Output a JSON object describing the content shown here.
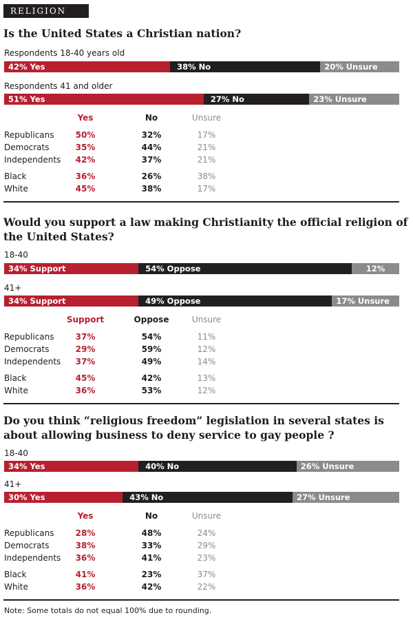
{
  "section_label": "RELIGION",
  "colors": {
    "yes": "#b8202f",
    "no": "#231f20",
    "unsure": "#8a8b8d"
  },
  "questions": [
    {
      "title": "Is the United States a Christian nation?",
      "groups": [
        {
          "label": "Respondents 18-40 years old",
          "segments": [
            "42% Yes",
            "38% No",
            "20% Unsure"
          ]
        },
        {
          "label": "Respondents 41 and older",
          "segments": [
            "51% Yes",
            "27% No",
            "23% Unsure"
          ]
        }
      ],
      "table": {
        "headers": [
          "Yes",
          "No",
          "Unsure"
        ],
        "rows": [
          {
            "label": "Republicans",
            "values": [
              "50%",
              "32%",
              "17%"
            ]
          },
          {
            "label": "Democrats",
            "values": [
              "35%",
              "44%",
              "21%"
            ]
          },
          {
            "label": "Independents",
            "values": [
              "42%",
              "37%",
              "21%"
            ]
          },
          {
            "label": "Black",
            "values": [
              "36%",
              "26%",
              "38%"
            ]
          },
          {
            "label": "White",
            "values": [
              "45%",
              "38%",
              "17%"
            ]
          }
        ]
      }
    },
    {
      "title": "Would you support a law making Christianity the official religion of the United States?",
      "groups": [
        {
          "label": "18-40",
          "segments": [
            "34% Support",
            "54% Oppose",
            "12%"
          ]
        },
        {
          "label": "41+",
          "segments": [
            "34% Support",
            "49% Oppose",
            "17% Unsure"
          ]
        }
      ],
      "table": {
        "headers": [
          "Support",
          "Oppose",
          "Unsure"
        ],
        "rows": [
          {
            "label": "Republicans",
            "values": [
              "37%",
              "54%",
              "11%"
            ]
          },
          {
            "label": "Democrats",
            "values": [
              "29%",
              "59%",
              "12%"
            ]
          },
          {
            "label": "Independents",
            "values": [
              "37%",
              "49%",
              "14%"
            ]
          },
          {
            "label": "Black",
            "values": [
              "45%",
              "42%",
              "13%"
            ]
          },
          {
            "label": "White",
            "values": [
              "36%",
              "53%",
              "12%"
            ]
          }
        ]
      }
    },
    {
      "title": "Do you think “religious freedom” legislation in several states is about allowing business to deny service to gay people ?",
      "groups": [
        {
          "label": "18-40",
          "segments": [
            "34% Yes",
            "40% No",
            "26% Unsure"
          ]
        },
        {
          "label": "41+",
          "segments": [
            "30% Yes",
            "43% No",
            "27% Unsure"
          ]
        }
      ],
      "table": {
        "headers": [
          "Yes",
          "No",
          "Unsure"
        ],
        "rows": [
          {
            "label": "Republicans",
            "values": [
              "28%",
              "48%",
              "24%"
            ]
          },
          {
            "label": "Democrats",
            "values": [
              "38%",
              "33%",
              "29%"
            ]
          },
          {
            "label": "Independents",
            "values": [
              "36%",
              "41%",
              "23%"
            ]
          },
          {
            "label": "Black",
            "values": [
              "41%",
              "23%",
              "37%"
            ]
          },
          {
            "label": "White",
            "values": [
              "36%",
              "42%",
              "22%"
            ]
          }
        ]
      }
    }
  ],
  "note": "Note: Some totals do not equal 100% due to rounding.",
  "chart_data": [
    {
      "type": "bar",
      "title": "Is the United States a Christian nation?",
      "categories": [
        "Respondents 18-40 years old",
        "Respondents 41 and older"
      ],
      "series": [
        {
          "name": "Yes",
          "values": [
            42,
            51
          ]
        },
        {
          "name": "No",
          "values": [
            38,
            27
          ]
        },
        {
          "name": "Unsure",
          "values": [
            20,
            23
          ]
        }
      ]
    },
    {
      "type": "bar",
      "title": "Would you support a law making Christianity the official religion of the United States?",
      "categories": [
        "18-40",
        "41+"
      ],
      "series": [
        {
          "name": "Support",
          "values": [
            34,
            34
          ]
        },
        {
          "name": "Oppose",
          "values": [
            54,
            49
          ]
        },
        {
          "name": "Unsure",
          "values": [
            12,
            17
          ]
        }
      ]
    },
    {
      "type": "bar",
      "title": "Do you think “religious freedom” legislation in several states is about allowing business to deny service to gay people ?",
      "categories": [
        "18-40",
        "41+"
      ],
      "series": [
        {
          "name": "Yes",
          "values": [
            34,
            30
          ]
        },
        {
          "name": "No",
          "values": [
            40,
            43
          ]
        },
        {
          "name": "Unsure",
          "values": [
            26,
            27
          ]
        }
      ]
    }
  ]
}
